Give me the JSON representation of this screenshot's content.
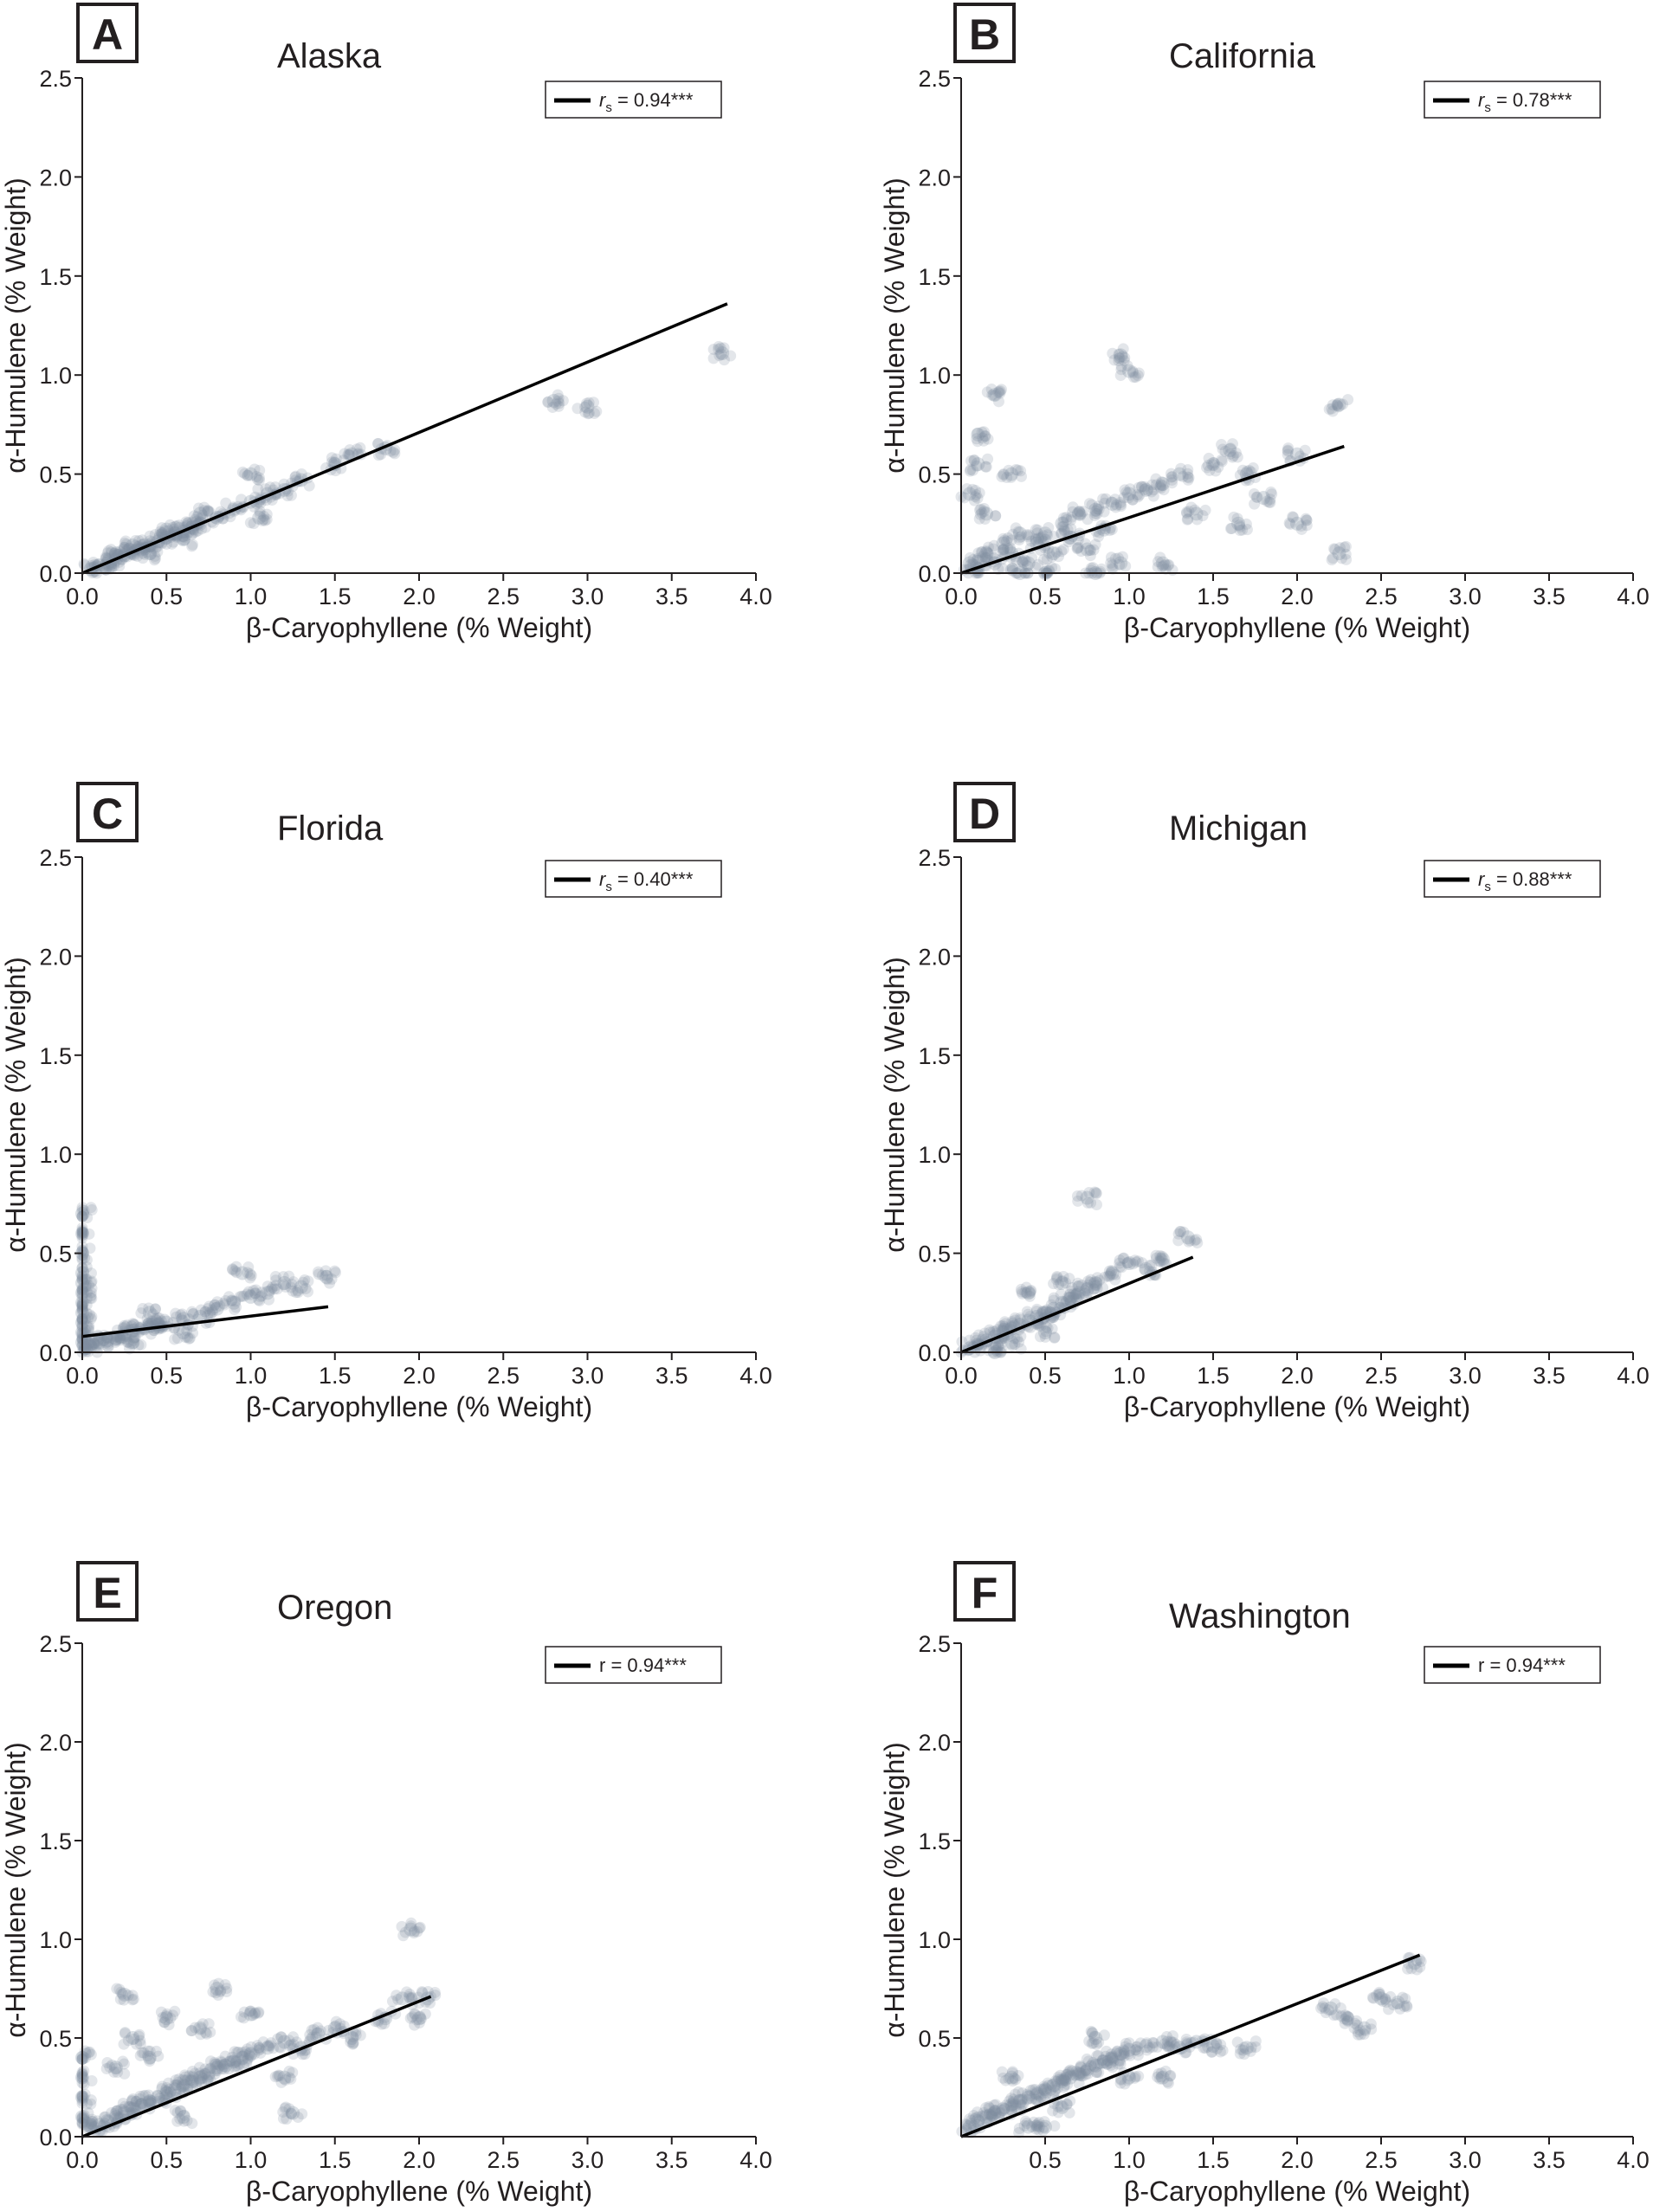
{
  "figure": {
    "panels": [
      {
        "letter": "A",
        "state": "Alaska",
        "legend": {
          "symbol": "r",
          "subscript": "s",
          "value_text": " = 0.94***"
        }
      },
      {
        "letter": "B",
        "state": "California",
        "legend": {
          "symbol": "r",
          "subscript": "s",
          "value_text": " = 0.78***"
        }
      },
      {
        "letter": "C",
        "state": "Florida",
        "legend": {
          "symbol": "r",
          "subscript": "s",
          "value_text": " = 0.40***"
        }
      },
      {
        "letter": "D",
        "state": "Michigan",
        "legend": {
          "symbol": "r",
          "subscript": "s",
          "value_text": " = 0.88***"
        }
      },
      {
        "letter": "E",
        "state": "Oregon",
        "legend": {
          "symbol": "r",
          "subscript": "",
          "value_text": " = 0.94***"
        }
      },
      {
        "letter": "F",
        "state": "Washington",
        "legend": {
          "symbol": "r",
          "subscript": "",
          "value_text": " = 0.94***"
        }
      }
    ],
    "colors": {
      "points": "#7f8ea0",
      "line": "#000000",
      "axis": "#231f20"
    }
  },
  "chart_data": [
    {
      "type": "scatter",
      "title": "Alaska",
      "xlabel": "β-Caryophyllene (% Weight)",
      "ylabel": "α-Humulene (% Weight)",
      "xlim": [
        0,
        4.0
      ],
      "ylim": [
        0,
        2.5
      ],
      "xticks": [
        "0.0",
        "0.5",
        "1.0",
        "1.5",
        "2.0",
        "2.5",
        "3.0",
        "3.5",
        "4.0"
      ],
      "yticks": [
        "0.0",
        "0.5",
        "1.0",
        "1.5",
        "2.0",
        "2.5"
      ],
      "legend": "rs = 0.94***",
      "fit": {
        "x": [
          0.0,
          3.83
        ],
        "y": [
          0.0,
          1.36
        ]
      },
      "points": [
        [
          0.05,
          0.02
        ],
        [
          0.1,
          0.04
        ],
        [
          0.15,
          0.05
        ],
        [
          0.2,
          0.07
        ],
        [
          0.25,
          0.09
        ],
        [
          0.3,
          0.1
        ],
        [
          0.35,
          0.12
        ],
        [
          0.4,
          0.14
        ],
        [
          0.45,
          0.16
        ],
        [
          0.5,
          0.18
        ],
        [
          0.55,
          0.2
        ],
        [
          0.6,
          0.21
        ],
        [
          0.65,
          0.23
        ],
        [
          0.7,
          0.25
        ],
        [
          0.8,
          0.28
        ],
        [
          0.9,
          0.32
        ],
        [
          1.0,
          0.36
        ],
        [
          1.1,
          0.4
        ],
        [
          1.2,
          0.42
        ],
        [
          1.3,
          0.47
        ],
        [
          1.5,
          0.55
        ],
        [
          1.6,
          0.6
        ],
        [
          1.8,
          0.63
        ],
        [
          2.8,
          0.87
        ],
        [
          3.0,
          0.84
        ],
        [
          3.8,
          1.11
        ],
        [
          0.3,
          0.14
        ],
        [
          0.4,
          0.1
        ],
        [
          0.5,
          0.22
        ],
        [
          0.6,
          0.17
        ],
        [
          0.7,
          0.3
        ],
        [
          0.2,
          0.1
        ],
        [
          1.0,
          0.5
        ],
        [
          1.05,
          0.28
        ]
      ]
    },
    {
      "type": "scatter",
      "title": "California",
      "xlabel": "β-Caryophyllene (% Weight)",
      "ylabel": "α-Humulene (% Weight)",
      "xlim": [
        0,
        4.0
      ],
      "ylim": [
        0,
        2.5
      ],
      "xticks": [
        "0.0",
        "0.5",
        "1.0",
        "1.5",
        "2.0",
        "2.5",
        "3.0",
        "3.5",
        "4.0"
      ],
      "yticks": [
        "0.0",
        "0.5",
        "1.0",
        "1.5",
        "2.0",
        "2.5"
      ],
      "legend": "rs = 0.78***",
      "fit": {
        "x": [
          0.0,
          2.28
        ],
        "y": [
          0.0,
          0.64
        ]
      },
      "points": [
        [
          0.05,
          0.05
        ],
        [
          0.1,
          0.02
        ],
        [
          0.15,
          0.1
        ],
        [
          0.2,
          0.05
        ],
        [
          0.25,
          0.15
        ],
        [
          0.3,
          0.1
        ],
        [
          0.35,
          0.2
        ],
        [
          0.4,
          0.05
        ],
        [
          0.45,
          0.15
        ],
        [
          0.5,
          0.2
        ],
        [
          0.55,
          0.1
        ],
        [
          0.6,
          0.25
        ],
        [
          0.65,
          0.18
        ],
        [
          0.7,
          0.3
        ],
        [
          0.75,
          0.12
        ],
        [
          0.8,
          0.32
        ],
        [
          0.85,
          0.22
        ],
        [
          0.9,
          0.35
        ],
        [
          0.95,
          0.05
        ],
        [
          1.0,
          0.4
        ],
        [
          1.1,
          0.42
        ],
        [
          1.2,
          0.45
        ],
        [
          1.3,
          0.5
        ],
        [
          1.4,
          0.3
        ],
        [
          1.5,
          0.55
        ],
        [
          1.6,
          0.62
        ],
        [
          1.7,
          0.5
        ],
        [
          1.8,
          0.38
        ],
        [
          2.0,
          0.6
        ],
        [
          2.25,
          0.85
        ],
        [
          2.25,
          0.1
        ],
        [
          2.0,
          0.25
        ],
        [
          0.95,
          1.1
        ],
        [
          1.0,
          1.02
        ],
        [
          0.1,
          0.7
        ],
        [
          0.2,
          0.9
        ],
        [
          0.05,
          0.4
        ],
        [
          0.3,
          0.5
        ],
        [
          0.5,
          0.0
        ],
        [
          0.8,
          0.0
        ],
        [
          1.2,
          0.05
        ],
        [
          0.15,
          0.3
        ],
        [
          0.1,
          0.55
        ],
        [
          0.35,
          0.0
        ],
        [
          1.65,
          0.25
        ]
      ]
    },
    {
      "type": "scatter",
      "title": "Florida",
      "xlabel": "β-Caryophyllene (% Weight)",
      "ylabel": "α-Humulene (% Weight)",
      "xlim": [
        0,
        4.0
      ],
      "ylim": [
        0,
        2.5
      ],
      "xticks": [
        "0.0",
        "0.5",
        "1.0",
        "1.5",
        "2.0",
        "2.5",
        "3.0",
        "3.5",
        "4.0"
      ],
      "yticks": [
        "0.0",
        "0.5",
        "1.0",
        "1.5",
        "2.0",
        "2.5"
      ],
      "legend": "rs = 0.40***",
      "fit": {
        "x": [
          0.0,
          1.46
        ],
        "y": [
          0.08,
          0.23
        ]
      },
      "points": [
        [
          0.0,
          0.05
        ],
        [
          0.0,
          0.1
        ],
        [
          0.0,
          0.15
        ],
        [
          0.0,
          0.2
        ],
        [
          0.0,
          0.25
        ],
        [
          0.0,
          0.3
        ],
        [
          0.0,
          0.35
        ],
        [
          0.0,
          0.4
        ],
        [
          0.0,
          0.5
        ],
        [
          0.0,
          0.6
        ],
        [
          0.0,
          0.7
        ],
        [
          0.02,
          0.02
        ],
        [
          0.05,
          0.03
        ],
        [
          0.1,
          0.05
        ],
        [
          0.15,
          0.06
        ],
        [
          0.2,
          0.07
        ],
        [
          0.25,
          0.09
        ],
        [
          0.3,
          0.11
        ],
        [
          0.35,
          0.12
        ],
        [
          0.4,
          0.13
        ],
        [
          0.45,
          0.14
        ],
        [
          0.5,
          0.15
        ],
        [
          0.6,
          0.17
        ],
        [
          0.7,
          0.18
        ],
        [
          0.8,
          0.22
        ],
        [
          0.9,
          0.25
        ],
        [
          1.0,
          0.28
        ],
        [
          1.1,
          0.3
        ],
        [
          1.2,
          0.35
        ],
        [
          1.3,
          0.33
        ],
        [
          1.45,
          0.38
        ],
        [
          0.95,
          0.4
        ],
        [
          0.3,
          0.05
        ],
        [
          0.4,
          0.2
        ],
        [
          0.6,
          0.1
        ]
      ]
    },
    {
      "type": "scatter",
      "title": "Michigan",
      "xlabel": "β-Caryophyllene (% Weight)",
      "ylabel": "α-Humulene (% Weight)",
      "xlim": [
        0,
        4.0
      ],
      "ylim": [
        0,
        2.5
      ],
      "xticks": [
        "0.0",
        "0.5",
        "1.0",
        "1.5",
        "2.0",
        "2.5",
        "3.0",
        "3.5",
        "4.0"
      ],
      "yticks": [
        "0.0",
        "0.5",
        "1.0",
        "1.5",
        "2.0",
        "2.5"
      ],
      "legend": "rs = 0.88***",
      "fit": {
        "x": [
          0.0,
          1.38
        ],
        "y": [
          0.0,
          0.48
        ]
      },
      "points": [
        [
          0.05,
          0.02
        ],
        [
          0.1,
          0.04
        ],
        [
          0.15,
          0.06
        ],
        [
          0.2,
          0.08
        ],
        [
          0.25,
          0.1
        ],
        [
          0.3,
          0.12
        ],
        [
          0.35,
          0.14
        ],
        [
          0.4,
          0.16
        ],
        [
          0.45,
          0.18
        ],
        [
          0.5,
          0.2
        ],
        [
          0.55,
          0.22
        ],
        [
          0.6,
          0.25
        ],
        [
          0.65,
          0.27
        ],
        [
          0.7,
          0.3
        ],
        [
          0.75,
          0.32
        ],
        [
          0.8,
          0.35
        ],
        [
          0.9,
          0.4
        ],
        [
          1.0,
          0.45
        ],
        [
          1.1,
          0.42
        ],
        [
          1.2,
          0.47
        ],
        [
          1.35,
          0.58
        ],
        [
          0.75,
          0.78
        ],
        [
          0.3,
          0.05
        ],
        [
          0.5,
          0.1
        ],
        [
          0.6,
          0.35
        ],
        [
          0.2,
          0.0
        ],
        [
          0.4,
          0.3
        ]
      ]
    },
    {
      "type": "scatter",
      "title": "Oregon",
      "xlabel": "β-Caryophyllene (% Weight)",
      "ylabel": "α-Humulene (% Weight)",
      "xlim": [
        0,
        4.0
      ],
      "ylim": [
        0,
        2.5
      ],
      "xticks": [
        "0.0",
        "0.5",
        "1.0",
        "1.5",
        "2.0",
        "2.5",
        "3.0",
        "3.5",
        "4.0"
      ],
      "yticks": [
        "0.0",
        "0.5",
        "1.0",
        "1.5",
        "2.0",
        "2.5"
      ],
      "legend": "r = 0.94***",
      "fit": {
        "x": [
          0.0,
          2.07
        ],
        "y": [
          0.0,
          0.71
        ]
      },
      "points": [
        [
          0.0,
          0.1
        ],
        [
          0.0,
          0.2
        ],
        [
          0.0,
          0.3
        ],
        [
          0.0,
          0.4
        ],
        [
          0.05,
          0.05
        ],
        [
          0.1,
          0.06
        ],
        [
          0.15,
          0.08
        ],
        [
          0.2,
          0.1
        ],
        [
          0.25,
          0.12
        ],
        [
          0.3,
          0.14
        ],
        [
          0.35,
          0.16
        ],
        [
          0.4,
          0.18
        ],
        [
          0.45,
          0.2
        ],
        [
          0.5,
          0.22
        ],
        [
          0.55,
          0.24
        ],
        [
          0.6,
          0.26
        ],
        [
          0.65,
          0.28
        ],
        [
          0.7,
          0.3
        ],
        [
          0.75,
          0.32
        ],
        [
          0.8,
          0.35
        ],
        [
          0.85,
          0.36
        ],
        [
          0.9,
          0.38
        ],
        [
          0.95,
          0.4
        ],
        [
          1.0,
          0.42
        ],
        [
          1.1,
          0.45
        ],
        [
          1.2,
          0.48
        ],
        [
          1.3,
          0.45
        ],
        [
          1.4,
          0.52
        ],
        [
          1.5,
          0.55
        ],
        [
          1.6,
          0.5
        ],
        [
          1.8,
          0.6
        ],
        [
          1.9,
          0.7
        ],
        [
          2.0,
          0.6
        ],
        [
          2.05,
          0.7
        ],
        [
          1.95,
          1.05
        ],
        [
          0.25,
          0.72
        ],
        [
          0.3,
          0.5
        ],
        [
          0.5,
          0.6
        ],
        [
          0.7,
          0.55
        ],
        [
          0.8,
          0.75
        ],
        [
          1.0,
          0.62
        ],
        [
          0.4,
          0.4
        ],
        [
          1.2,
          0.3
        ],
        [
          1.25,
          0.12
        ],
        [
          0.6,
          0.1
        ],
        [
          0.2,
          0.35
        ]
      ]
    },
    {
      "type": "scatter",
      "title": "Washington",
      "xlabel": "β-Caryophyllene (% Weight)",
      "ylabel": "α-Humulene (% Weight)",
      "xlim": [
        0,
        4.0
      ],
      "ylim": [
        0,
        2.5
      ],
      "xticks": [
        "0.5",
        "1.0",
        "1.5",
        "2.0",
        "2.5",
        "3.0",
        "3.5",
        "4.0"
      ],
      "yticks": [
        "0.5",
        "1.0",
        "1.5",
        "2.0",
        "2.5"
      ],
      "legend": "r = 0.94***",
      "fit": {
        "x": [
          0.0,
          2.73
        ],
        "y": [
          0.0,
          0.92
        ]
      },
      "points": [
        [
          0.05,
          0.05
        ],
        [
          0.1,
          0.08
        ],
        [
          0.15,
          0.1
        ],
        [
          0.2,
          0.12
        ],
        [
          0.25,
          0.14
        ],
        [
          0.3,
          0.16
        ],
        [
          0.35,
          0.18
        ],
        [
          0.4,
          0.2
        ],
        [
          0.45,
          0.22
        ],
        [
          0.5,
          0.24
        ],
        [
          0.55,
          0.26
        ],
        [
          0.6,
          0.28
        ],
        [
          0.65,
          0.3
        ],
        [
          0.7,
          0.32
        ],
        [
          0.75,
          0.34
        ],
        [
          0.8,
          0.36
        ],
        [
          0.85,
          0.38
        ],
        [
          0.9,
          0.4
        ],
        [
          0.95,
          0.42
        ],
        [
          1.0,
          0.44
        ],
        [
          1.1,
          0.46
        ],
        [
          1.2,
          0.48
        ],
        [
          1.3,
          0.45
        ],
        [
          1.4,
          0.48
        ],
        [
          1.5,
          0.46
        ],
        [
          1.7,
          0.45
        ],
        [
          2.2,
          0.65
        ],
        [
          2.3,
          0.6
        ],
        [
          2.4,
          0.55
        ],
        [
          2.5,
          0.7
        ],
        [
          2.6,
          0.68
        ],
        [
          2.7,
          0.88
        ],
        [
          0.5,
          0.05
        ],
        [
          0.3,
          0.3
        ],
        [
          0.6,
          0.15
        ],
        [
          0.8,
          0.5
        ],
        [
          1.0,
          0.3
        ],
        [
          1.2,
          0.3
        ],
        [
          0.4,
          0.05
        ]
      ]
    }
  ]
}
